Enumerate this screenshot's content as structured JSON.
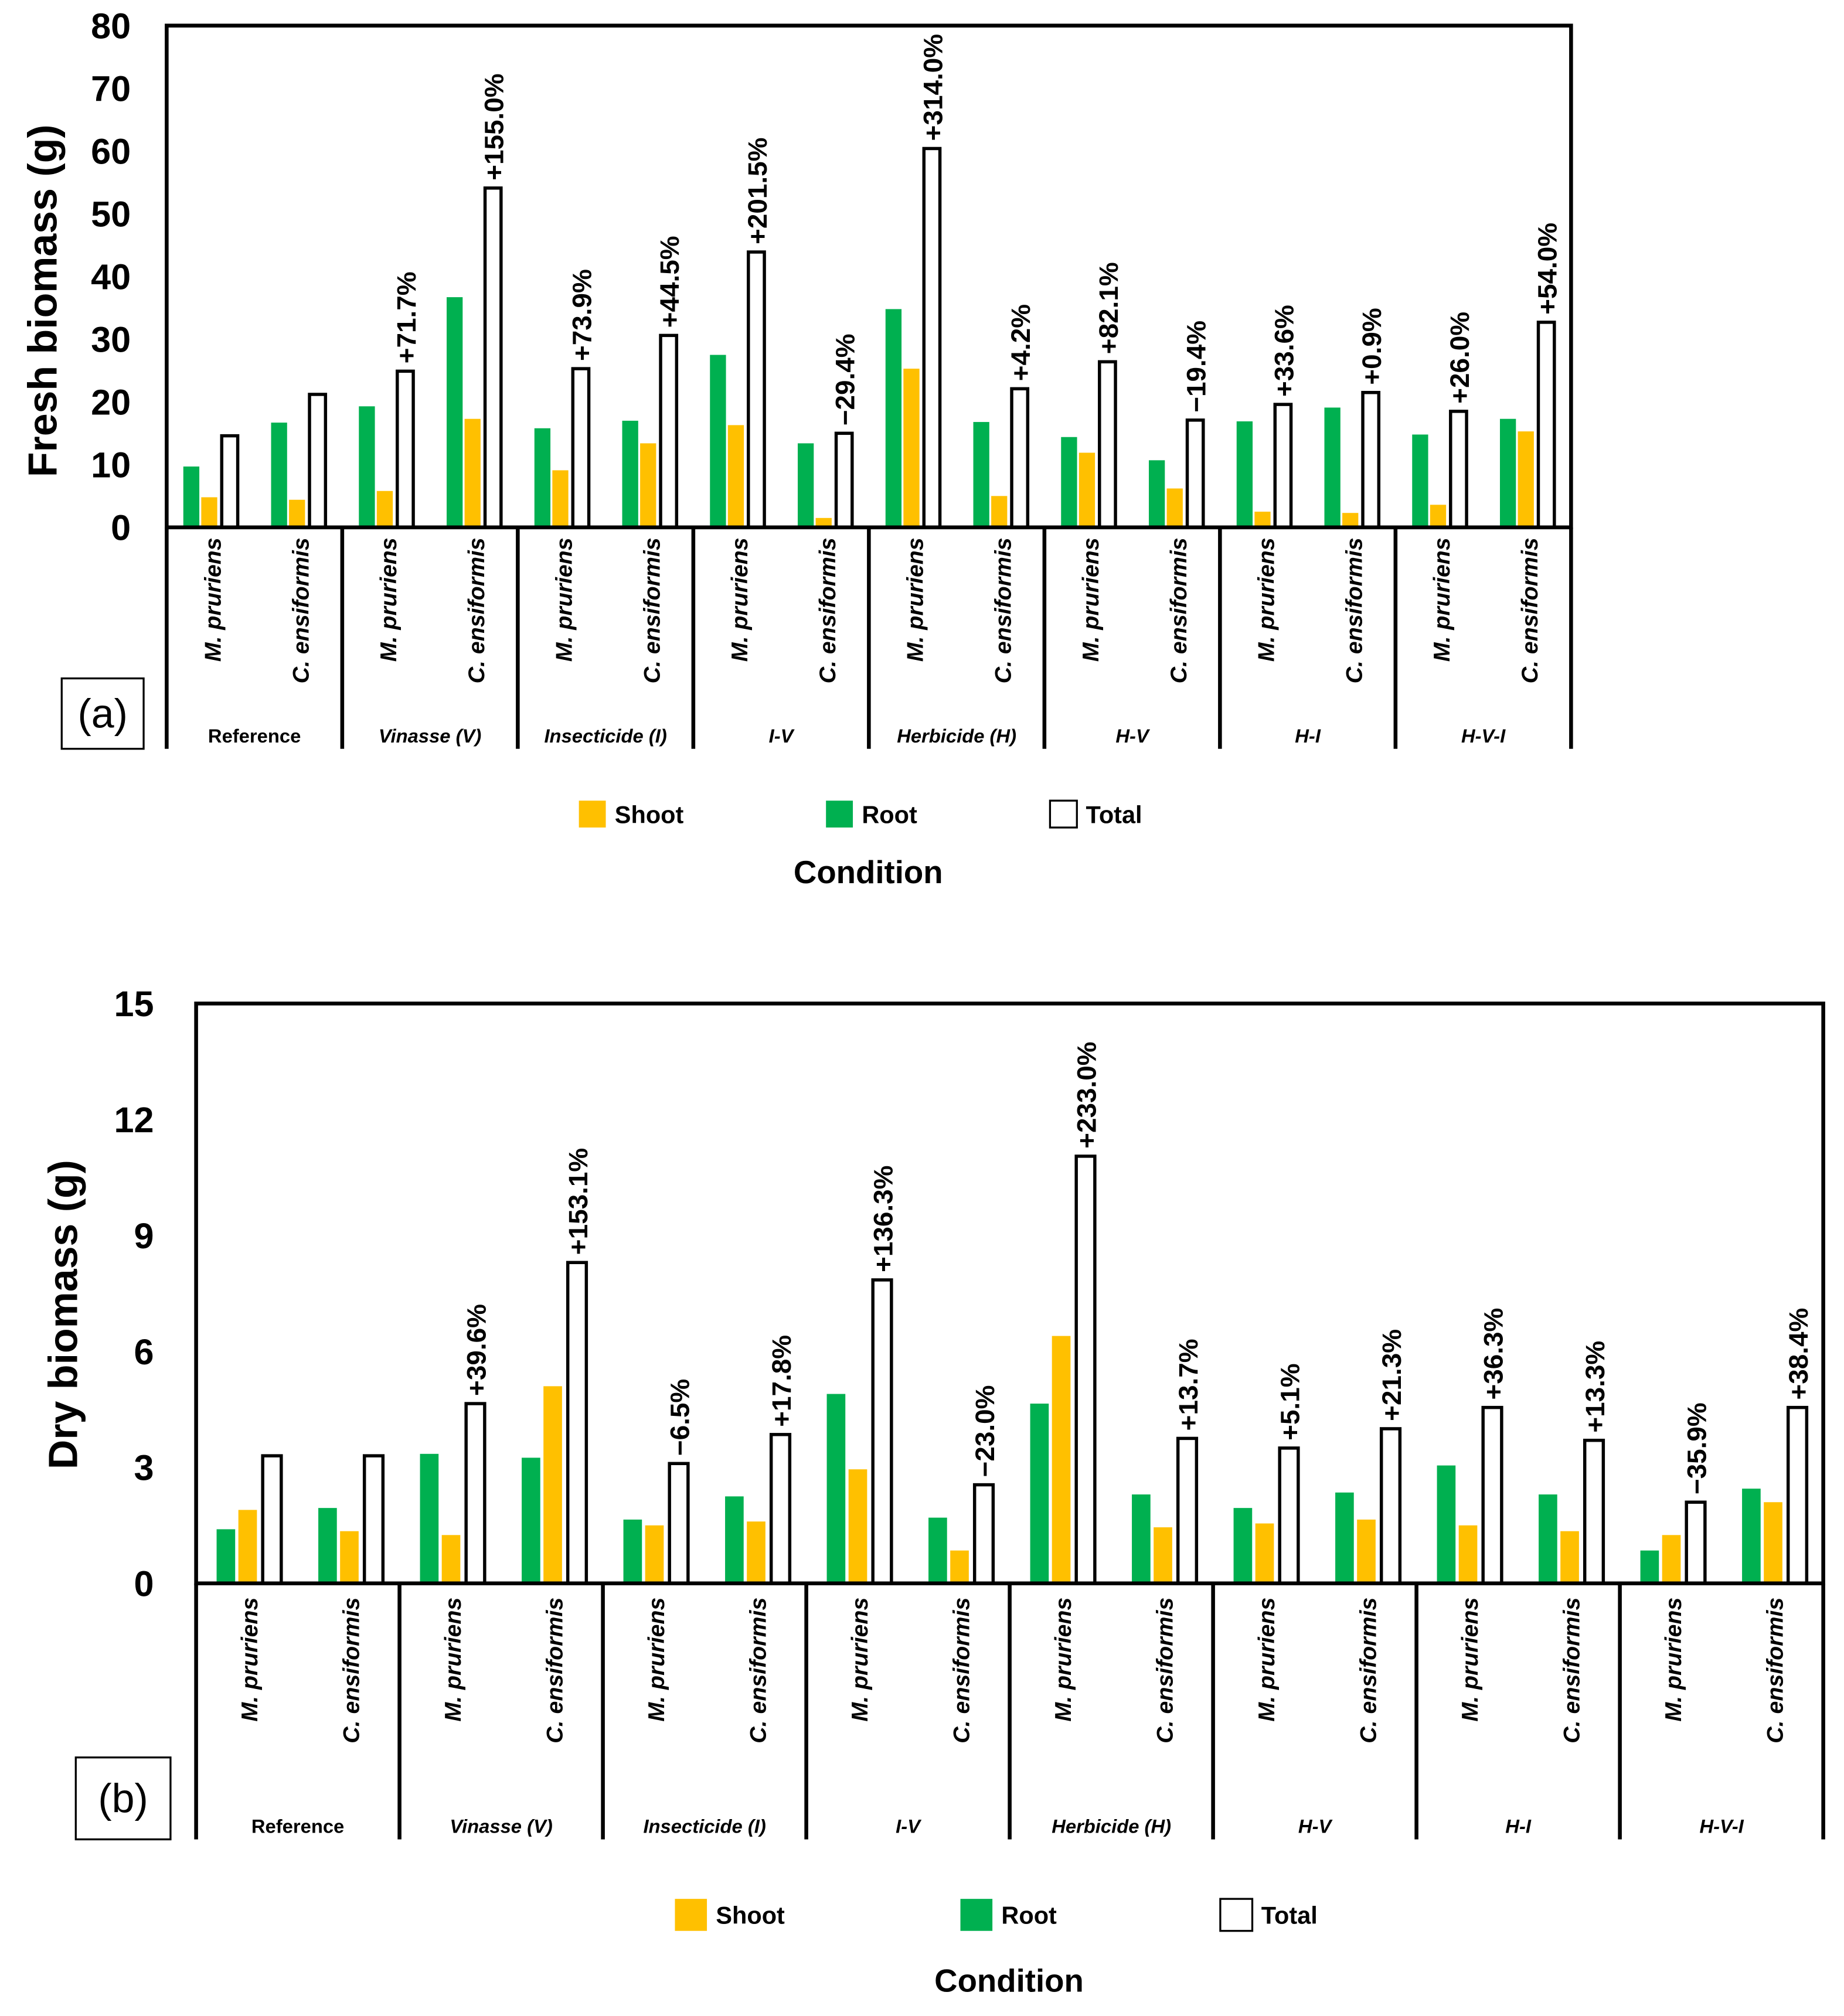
{
  "colors": {
    "shoot": "#FFC000",
    "root": "#00B050",
    "total": "#FFFFFF",
    "outline": "#000000"
  },
  "chart_data": [
    {
      "type": "bar",
      "panel_label": "(a)",
      "ylabel": "Fresh biomass (g)",
      "xlabel": "Condition",
      "ylim": [
        0,
        80
      ],
      "yticks": [
        "0",
        "10",
        "20",
        "30",
        "40",
        "50",
        "60",
        "70",
        "80"
      ],
      "legend": [
        "Shoot",
        "Root",
        "Total"
      ],
      "legend_position": "bottom",
      "groups": [
        "Reference",
        "Vinasse (V)",
        "Insecticide (I)",
        "I-V",
        "Herbicide (H)",
        "H-V",
        "H-I",
        "H-V-I"
      ],
      "species": [
        "M. pruriens",
        "C. ensiformis"
      ],
      "series": [
        {
          "name": "Root",
          "values": [
            9.7,
            16.7,
            19.3,
            36.7,
            15.8,
            17.0,
            27.5,
            13.4,
            34.8,
            16.8,
            14.4,
            10.7,
            16.9,
            19.1,
            14.8,
            17.3
          ]
        },
        {
          "name": "Shoot",
          "values": [
            4.8,
            4.4,
            5.8,
            17.3,
            9.1,
            13.4,
            16.3,
            1.5,
            25.3,
            5.0,
            11.9,
            6.2,
            2.5,
            2.3,
            3.6,
            15.3
          ]
        },
        {
          "name": "Total",
          "values": [
            14.6,
            21.2,
            24.9,
            54.1,
            25.3,
            30.6,
            43.9,
            15.0,
            60.4,
            22.1,
            26.4,
            17.1,
            19.6,
            21.5,
            18.5,
            32.7
          ]
        }
      ],
      "annotations": [
        null,
        null,
        "+71.7%",
        "+155.0%",
        "+73.9%",
        "+44.5%",
        "+201.5%",
        "−29.4%",
        "+314.0%",
        "+4.2%",
        "+82.1%",
        "−19.4%",
        "+33.6%",
        "+0.9%",
        "+26.0%",
        "+54.0%"
      ]
    },
    {
      "type": "bar",
      "panel_label": "(b)",
      "ylabel": "Dry biomass (g)",
      "xlabel": "Condition",
      "ylim": [
        0,
        15
      ],
      "yticks": [
        "0",
        "3",
        "6",
        "9",
        "12",
        "15"
      ],
      "legend": [
        "Shoot",
        "Root",
        "Total"
      ],
      "legend_position": "bottom",
      "groups": [
        "Reference",
        "Vinasse (V)",
        "Insecticide (I)",
        "I-V",
        "Herbicide (H)",
        "H-V",
        "H-I",
        "H-V-I"
      ],
      "species": [
        "M. pruriens",
        "C. ensiformis"
      ],
      "series": [
        {
          "name": "Root",
          "values": [
            1.4,
            1.95,
            3.35,
            3.25,
            1.65,
            2.25,
            4.9,
            1.7,
            4.65,
            2.3,
            1.95,
            2.35,
            3.05,
            2.3,
            0.85,
            2.45
          ]
        },
        {
          "name": "Shoot",
          "values": [
            1.9,
            1.35,
            1.25,
            5.1,
            1.5,
            1.6,
            2.95,
            0.85,
            6.4,
            1.45,
            1.55,
            1.65,
            1.5,
            1.35,
            1.25,
            2.1
          ]
        },
        {
          "name": "Total",
          "values": [
            3.3,
            3.3,
            4.65,
            8.3,
            3.1,
            3.85,
            7.85,
            2.55,
            11.05,
            3.75,
            3.5,
            4.0,
            4.55,
            3.7,
            2.1,
            4.55
          ]
        }
      ],
      "annotations": [
        null,
        null,
        "+39.6%",
        "+153.1%",
        "−6.5%",
        "+17.8%",
        "+136.3%",
        "−23.0%",
        "+233.0%",
        "+13.7%",
        "+5.1%",
        "+21.3%",
        "+36.3%",
        "+13.3%",
        "−35.9%",
        "+38.4%"
      ]
    }
  ]
}
